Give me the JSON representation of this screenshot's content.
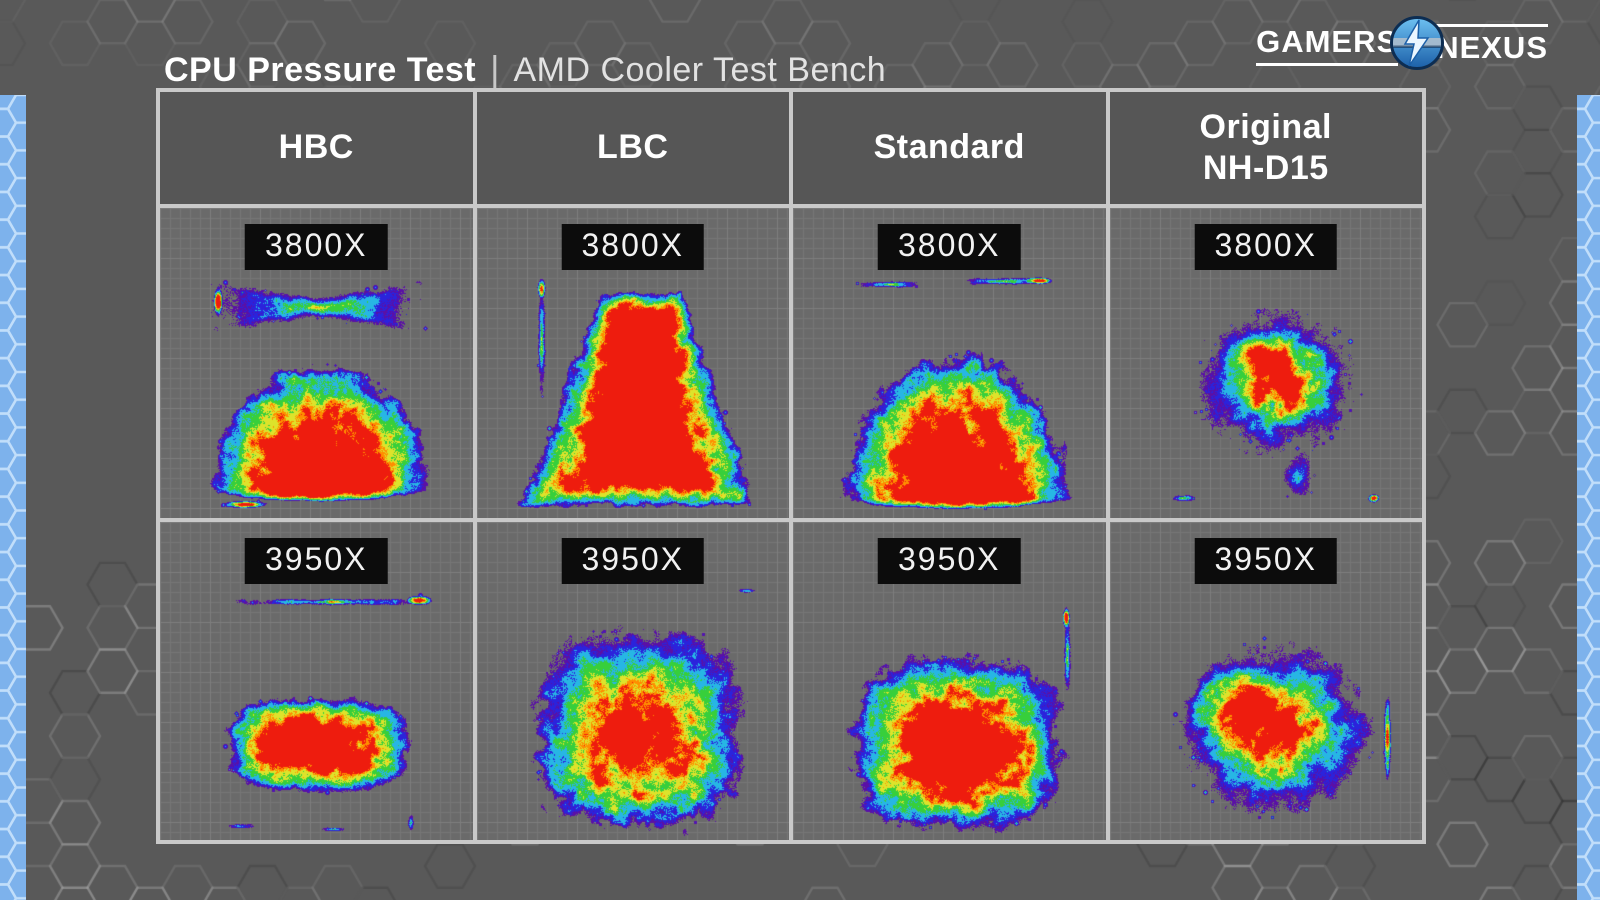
{
  "page": {
    "title_bold": "CPU Pressure Test",
    "title_separator": "|",
    "title_light": "AMD Cooler Test Bench"
  },
  "logo": {
    "part1": "GAMERS",
    "part2": "NEXUS"
  },
  "colors": {
    "page_bg": "#595959",
    "cell_bg": "#6a6a6a",
    "header_bg": "#565656",
    "table_border": "#c9c9c9",
    "label_bg": "#0c0c0c",
    "accent_blue": "#7db2ec",
    "hex_line_blue": "#d8ecff"
  },
  "chart_data": {
    "type": "heatmap",
    "title": "CPU Pressure Test",
    "subtitle": "AMD Cooler Test Bench",
    "columns": [
      "HBC",
      "LBC",
      "Standard",
      "Original\nNH-D15"
    ],
    "rows": [
      "3800X",
      "3950X"
    ],
    "legend": "rainbow pressure colormap: red = highest contact pressure, orange, yellow, green, cyan, blue, purple = lowest; gray grid = no contact",
    "palette": [
      [
        0.14,
        "#5a10a6"
      ],
      [
        0.22,
        "#2b23dc"
      ],
      [
        0.32,
        "#27b6e4"
      ],
      [
        0.44,
        "#37cf3b"
      ],
      [
        0.56,
        "#dde32b"
      ],
      [
        0.665,
        "#ff8e00"
      ],
      [
        0.74,
        "#ee1c0e"
      ]
    ],
    "grid": {
      "bg": "#6a6a6a",
      "minor": "#767676",
      "major": "#7e7e7e",
      "step": 10,
      "major_every": 50
    },
    "cells": [
      {
        "column": "HBC",
        "row": "3800X",
        "label": "3800X",
        "seed": 11,
        "description": "Light bowtie/X-shaped contact band across upper third with a red hotspot at its left tip; large solid high-pressure dome over the lower half; thin red sliver at bottom-left",
        "scatter": 55,
        "shapes": [
          {
            "t": "bowtie",
            "cx": 0.5,
            "cy": 0.32,
            "rx": 0.36,
            "hMin": 0.035,
            "hMax": 0.1,
            "amp": 0.6,
            "k": 1.0,
            "rag": 0.3
          },
          {
            "t": "ellipse",
            "cx": 0.185,
            "cy": 0.3,
            "rx": 0.015,
            "ry": 0.05,
            "amp": 1.05,
            "k": 0.8,
            "rag": 0.25
          },
          {
            "t": "dome",
            "cx": 0.51,
            "cy": 0.9,
            "rx": 0.345,
            "ryUp": 0.4,
            "ryDown": 0.045,
            "amp": 1.32,
            "k": 0.6,
            "rag": 0.18
          },
          {
            "t": "ellipse",
            "cx": 0.27,
            "cy": 0.955,
            "rx": 0.075,
            "ry": 0.013,
            "amp": 1.0,
            "k": 0.8,
            "rag": 0.3
          }
        ]
      },
      {
        "column": "LBC",
        "row": "3800X",
        "label": "3800X",
        "seed": 22,
        "description": "Tall bell / A-shaped high-pressure zone: wide red base spanning the bottom narrowing to a rounded apex near the top; thin vertical low-pressure sliver along the left edge with an orange spot at its top",
        "scatter": 45,
        "shapes": [
          {
            "t": "tri",
            "cx": 0.52,
            "yTop": 0.27,
            "yBase": 0.96,
            "wTop": 0.13,
            "wBase": 0.385,
            "amp": 1.3,
            "k": 0.62,
            "rag": 0.22
          },
          {
            "t": "ellipse",
            "cx": 0.205,
            "cy": 0.42,
            "rx": 0.014,
            "ry": 0.2,
            "amp": 0.55,
            "k": 1.0,
            "rag": 0.35
          },
          {
            "t": "ellipse",
            "cx": 0.205,
            "cy": 0.26,
            "rx": 0.013,
            "ry": 0.035,
            "amp": 0.95,
            "k": 0.8,
            "rag": 0.3
          }
        ]
      },
      {
        "column": "Standard",
        "row": "3800X",
        "label": "3800X",
        "seed": 33,
        "description": "Large red dome with rounded top and wide flat base in lower two-thirds; two thin horizontal contact slivers near the top, the right one with an orange-red segment",
        "scatter": 45,
        "shapes": [
          {
            "t": "dome",
            "cx": 0.52,
            "cy": 0.93,
            "rx": 0.355,
            "ryUp": 0.47,
            "ryDown": 0.04,
            "amp": 1.3,
            "k": 0.62,
            "rag": 0.2
          },
          {
            "t": "rect",
            "cx": 0.3,
            "cy": 0.245,
            "rx": 0.12,
            "ry": 0.011,
            "p": 4,
            "amp": 0.52,
            "k": 1.0,
            "rag": 0.5
          },
          {
            "t": "rect",
            "cx": 0.67,
            "cy": 0.235,
            "rx": 0.14,
            "ry": 0.012,
            "p": 4,
            "amp": 0.58,
            "k": 1.0,
            "rag": 0.5
          },
          {
            "t": "ellipse",
            "cx": 0.78,
            "cy": 0.233,
            "rx": 0.05,
            "ry": 0.012,
            "amp": 1.0,
            "k": 0.8,
            "rag": 0.35
          }
        ]
      },
      {
        "column": "Original\nNH-D15",
        "row": "3800X",
        "label": "3800X",
        "seed": 44,
        "description": "Roundish centered blob with red core and broad gradual yellow-green-cyan fringe; cyan tail running to the bottom edge; small slivers at bottom-left and an orange spot at bottom-right",
        "scatter": 65,
        "shapes": [
          {
            "t": "ellipse",
            "cx": 0.53,
            "cy": 0.56,
            "rx": 0.3,
            "ry": 0.27,
            "amp": 1.06,
            "k": 1.5,
            "rag": 0.3
          },
          {
            "t": "ellipse",
            "cx": 0.5,
            "cy": 0.5,
            "rx": 0.17,
            "ry": 0.14,
            "amp": 1.22,
            "k": 1.0,
            "rag": 0.25
          },
          {
            "t": "ellipse",
            "cx": 0.6,
            "cy": 0.86,
            "rx": 0.06,
            "ry": 0.1,
            "amp": 0.48,
            "k": 1.3,
            "rag": 0.4
          },
          {
            "t": "ellipse",
            "cx": 0.23,
            "cy": 0.935,
            "rx": 0.05,
            "ry": 0.012,
            "amp": 0.5,
            "k": 1.0,
            "rag": 0.4
          },
          {
            "t": "ellipse",
            "cx": 0.84,
            "cy": 0.935,
            "rx": 0.02,
            "ry": 0.015,
            "amp": 0.95,
            "k": 0.8,
            "rag": 0.3
          }
        ]
      },
      {
        "column": "HBC",
        "row": "3950X",
        "label": "3950X",
        "seed": 55,
        "description": "Thin speckled horizontal contact line across the upper area with a red-orange hotspot at its right end; wide red rounded pill in the lower middle; small slivers along the bottom edge",
        "scatter": 45,
        "shapes": [
          {
            "t": "rect",
            "cx": 0.52,
            "cy": 0.25,
            "rx": 0.335,
            "ry": 0.011,
            "p": 4,
            "amp": 0.55,
            "k": 1.0,
            "rag": 0.55
          },
          {
            "t": "ellipse",
            "cx": 0.83,
            "cy": 0.245,
            "rx": 0.045,
            "ry": 0.016,
            "amp": 1.1,
            "k": 0.8,
            "rag": 0.3
          },
          {
            "t": "rect",
            "cx": 0.5,
            "cy": 0.7,
            "rx": 0.3,
            "ry": 0.15,
            "p": 3,
            "amp": 1.28,
            "k": 0.65,
            "rag": 0.2
          },
          {
            "t": "ellipse",
            "cx": 0.25,
            "cy": 0.955,
            "rx": 0.055,
            "ry": 0.01,
            "amp": 0.5,
            "k": 1.0,
            "rag": 0.45
          },
          {
            "t": "ellipse",
            "cx": 0.55,
            "cy": 0.965,
            "rx": 0.045,
            "ry": 0.009,
            "amp": 0.5,
            "k": 1.0,
            "rag": 0.45
          },
          {
            "t": "ellipse",
            "cx": 0.8,
            "cy": 0.945,
            "rx": 0.014,
            "ry": 0.032,
            "amp": 0.55,
            "k": 1.0,
            "rag": 0.4
          }
        ]
      },
      {
        "column": "LBC",
        "row": "3950X",
        "label": "3950X",
        "seed": 66,
        "description": "Very large rounded-square blob covering most of the die area; solid red lower two-thirds with heavily mottled yellow/green/cyan upper band; ragged speckled edges",
        "scatter": 55,
        "shapes": [
          {
            "t": "rect",
            "cx": 0.515,
            "cy": 0.645,
            "rx": 0.335,
            "ry": 0.325,
            "p": 3.2,
            "amp": 1.05,
            "k": 0.75,
            "gy": 0.3,
            "rag": 0.26
          },
          {
            "t": "ellipse",
            "cx": 0.86,
            "cy": 0.215,
            "rx": 0.032,
            "ry": 0.008,
            "amp": 0.5,
            "k": 1.0,
            "rag": 0.4
          }
        ]
      },
      {
        "column": "Standard",
        "row": "3950X",
        "label": "3950X",
        "seed": 77,
        "description": "Large red rounded rectangle filling the lower area with green/cyan mottled bottom fringe; thin vertical tail rising along the right side with a red tip",
        "scatter": 50,
        "shapes": [
          {
            "t": "rect",
            "cx": 0.525,
            "cy": 0.695,
            "rx": 0.34,
            "ry": 0.275,
            "p": 3.2,
            "amp": 1.22,
            "k": 0.7,
            "gy": 0.1,
            "rag": 0.22
          },
          {
            "t": "ellipse",
            "cx": 0.875,
            "cy": 0.42,
            "rx": 0.013,
            "ry": 0.145,
            "amp": 0.6,
            "k": 1.0,
            "rag": 0.35
          },
          {
            "t": "ellipse",
            "cx": 0.872,
            "cy": 0.3,
            "rx": 0.013,
            "ry": 0.035,
            "amp": 1.05,
            "k": 0.8,
            "rag": 0.3
          }
        ]
      },
      {
        "column": "Original\nNH-D15",
        "row": "3950X",
        "label": "3950X",
        "seed": 88,
        "description": "Large roundish blob nearly filling the area; red core offset center-left, strongly mottled orange/yellow/green right half with diagonal streaking; orange strip at far right edge",
        "scatter": 65,
        "shapes": [
          {
            "t": "ellipse",
            "cx": 0.53,
            "cy": 0.655,
            "rx": 0.35,
            "ry": 0.305,
            "amp": 1.04,
            "k": 1.3,
            "rag": 0.3
          },
          {
            "t": "ellipse",
            "cx": 0.44,
            "cy": 0.6,
            "rx": 0.21,
            "ry": 0.19,
            "amp": 1.22,
            "k": 0.9,
            "rag": 0.25
          },
          {
            "t": "ellipse",
            "cx": 0.885,
            "cy": 0.68,
            "rx": 0.013,
            "ry": 0.14,
            "amp": 0.95,
            "k": 0.9,
            "rag": 0.3
          }
        ]
      }
    ]
  }
}
